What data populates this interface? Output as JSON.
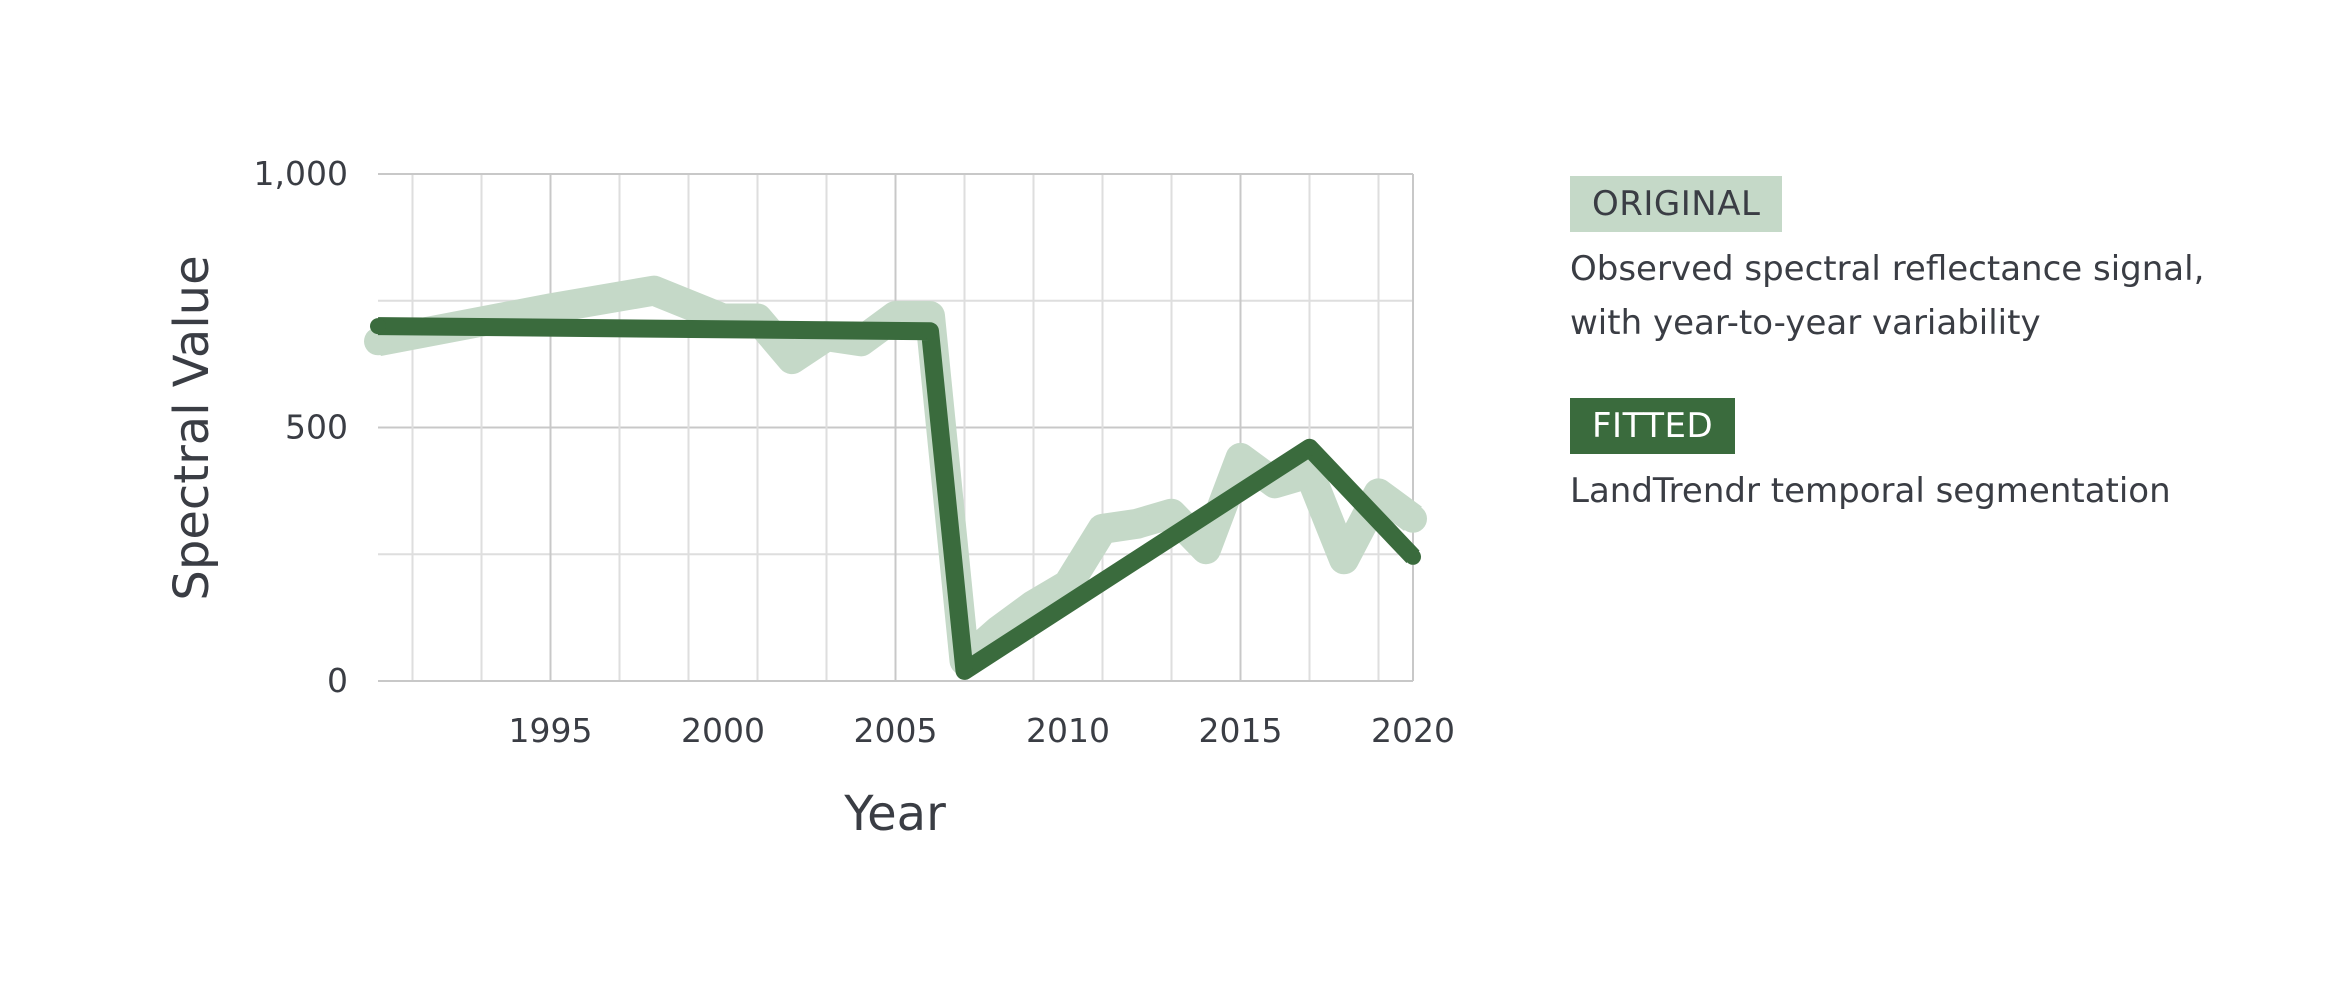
{
  "chart_data": {
    "type": "line",
    "xlabel": "Year",
    "ylabel": "Spectral Value",
    "xlim": [
      1990,
      2020
    ],
    "ylim": [
      0,
      1000
    ],
    "x_ticks": [
      1995,
      2000,
      2005,
      2010,
      2015,
      2020
    ],
    "y_ticks": [
      {
        "value": 0,
        "label": "0"
      },
      {
        "value": 500,
        "label": "500"
      },
      {
        "value": 1000,
        "label": "1,000"
      }
    ],
    "grid": true,
    "series": [
      {
        "name": "ORIGINAL",
        "description": "Observed spectral reflectance signal, with year-to-year variability",
        "color": "#c5d9c8",
        "x": [
          1990,
          1995,
          1998,
          2000,
          2001,
          2002,
          2003,
          2004,
          2005,
          2006,
          2007,
          2008,
          2009,
          2010,
          2011,
          2012,
          2013,
          2014,
          2015,
          2016,
          2017,
          2018,
          2019,
          2020
        ],
        "y": [
          670,
          735,
          770,
          715,
          715,
          635,
          680,
          670,
          720,
          720,
          40,
          100,
          150,
          190,
          300,
          310,
          330,
          260,
          440,
          390,
          410,
          240,
          370,
          320
        ]
      },
      {
        "name": "FITTED",
        "description": "LandTrendr temporal segmentation",
        "color": "#3a6b3d",
        "x": [
          1990,
          2006,
          2007,
          2017,
          2020
        ],
        "y": [
          700,
          690,
          20,
          460,
          245
        ]
      }
    ]
  },
  "legend": {
    "original": {
      "label": "ORIGINAL",
      "description": "Observed spectral reflectance signal, with year-to-year variability"
    },
    "fitted": {
      "label": "FITTED",
      "description": "LandTrendr temporal segmentation"
    }
  }
}
